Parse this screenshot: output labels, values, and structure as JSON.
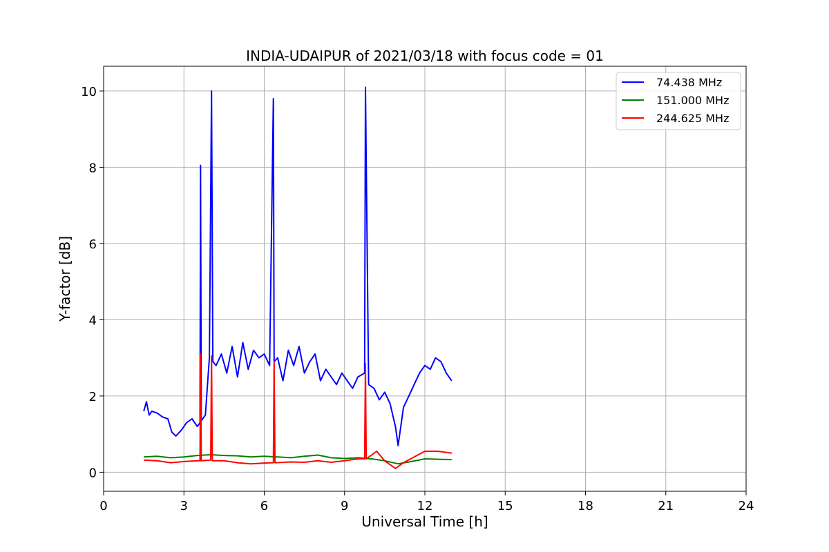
{
  "chart_data": {
    "type": "line",
    "title": "INDIA-UDAIPUR of 2021/03/18 with focus code = 01",
    "xlabel": "Universal Time [h]",
    "ylabel": "Y-factor [dB]",
    "xlim": [
      0,
      24
    ],
    "ylim": [
      -0.5,
      10.65
    ],
    "xticks": [
      0,
      3,
      6,
      9,
      12,
      15,
      18,
      21,
      24
    ],
    "yticks": [
      0,
      2,
      4,
      6,
      8,
      10
    ],
    "grid": true,
    "legend_position": "top-right",
    "series": [
      {
        "name": "74.438 MHz",
        "color": "#0000ff",
        "x": [
          1.5,
          1.6,
          1.7,
          1.8,
          2.0,
          2.2,
          2.4,
          2.55,
          2.7,
          2.9,
          3.1,
          3.3,
          3.5,
          3.6,
          3.62,
          3.65,
          3.8,
          3.95,
          4.03,
          4.08,
          4.2,
          4.4,
          4.6,
          4.8,
          5.0,
          5.2,
          5.4,
          5.6,
          5.8,
          6.0,
          6.2,
          6.34,
          6.37,
          6.5,
          6.7,
          6.9,
          7.1,
          7.3,
          7.5,
          7.7,
          7.9,
          8.1,
          8.3,
          8.5,
          8.7,
          8.9,
          9.1,
          9.3,
          9.5,
          9.75,
          9.78,
          9.9,
          10.1,
          10.3,
          10.5,
          10.7,
          10.9,
          11.0,
          11.2,
          11.4,
          11.6,
          11.8,
          12.0,
          12.2,
          12.4,
          12.6,
          12.8,
          13.0
        ],
        "y": [
          1.6,
          1.85,
          1.5,
          1.6,
          1.55,
          1.45,
          1.4,
          1.05,
          0.95,
          1.1,
          1.3,
          1.4,
          1.2,
          1.3,
          8.05,
          1.35,
          1.5,
          3.0,
          10.0,
          2.9,
          2.8,
          3.1,
          2.6,
          3.3,
          2.5,
          3.4,
          2.7,
          3.2,
          3.0,
          3.1,
          2.8,
          9.8,
          2.9,
          3.0,
          2.4,
          3.2,
          2.8,
          3.3,
          2.6,
          2.9,
          3.1,
          2.4,
          2.7,
          2.5,
          2.3,
          2.6,
          2.4,
          2.2,
          2.5,
          2.6,
          10.1,
          2.3,
          2.2,
          1.9,
          2.1,
          1.8,
          1.2,
          0.7,
          1.7,
          2.0,
          2.3,
          2.6,
          2.8,
          2.7,
          3.0,
          2.9,
          2.6,
          2.4
        ]
      },
      {
        "name": "151.000 MHz",
        "color": "#008000",
        "x": [
          1.5,
          2.0,
          2.5,
          3.0,
          3.5,
          4.0,
          4.5,
          5.0,
          5.5,
          6.0,
          6.5,
          7.0,
          7.5,
          8.0,
          8.5,
          9.0,
          9.5,
          10.0,
          10.5,
          11.0,
          11.5,
          12.0,
          12.5,
          13.0
        ],
        "y": [
          0.4,
          0.42,
          0.38,
          0.4,
          0.44,
          0.46,
          0.44,
          0.43,
          0.4,
          0.42,
          0.4,
          0.38,
          0.42,
          0.45,
          0.38,
          0.36,
          0.38,
          0.35,
          0.3,
          0.22,
          0.28,
          0.35,
          0.34,
          0.33
        ]
      },
      {
        "name": "244.625 MHz",
        "color": "#ff0000",
        "x": [
          1.5,
          2.0,
          2.5,
          3.0,
          3.5,
          3.6,
          3.62,
          3.65,
          4.0,
          4.03,
          4.06,
          4.5,
          5.0,
          5.5,
          6.0,
          6.34,
          6.37,
          6.4,
          7.0,
          7.5,
          8.0,
          8.5,
          9.0,
          9.5,
          9.75,
          9.78,
          9.81,
          10.2,
          10.5,
          10.9,
          11.2,
          11.6,
          12.0,
          12.5,
          13.0
        ],
        "y": [
          0.32,
          0.3,
          0.25,
          0.28,
          0.3,
          0.3,
          3.1,
          0.3,
          0.32,
          3.05,
          0.3,
          0.3,
          0.25,
          0.22,
          0.24,
          0.25,
          2.9,
          0.25,
          0.27,
          0.26,
          0.3,
          0.26,
          0.3,
          0.35,
          0.35,
          2.85,
          0.35,
          0.55,
          0.3,
          0.1,
          0.25,
          0.4,
          0.55,
          0.55,
          0.5
        ]
      }
    ]
  }
}
